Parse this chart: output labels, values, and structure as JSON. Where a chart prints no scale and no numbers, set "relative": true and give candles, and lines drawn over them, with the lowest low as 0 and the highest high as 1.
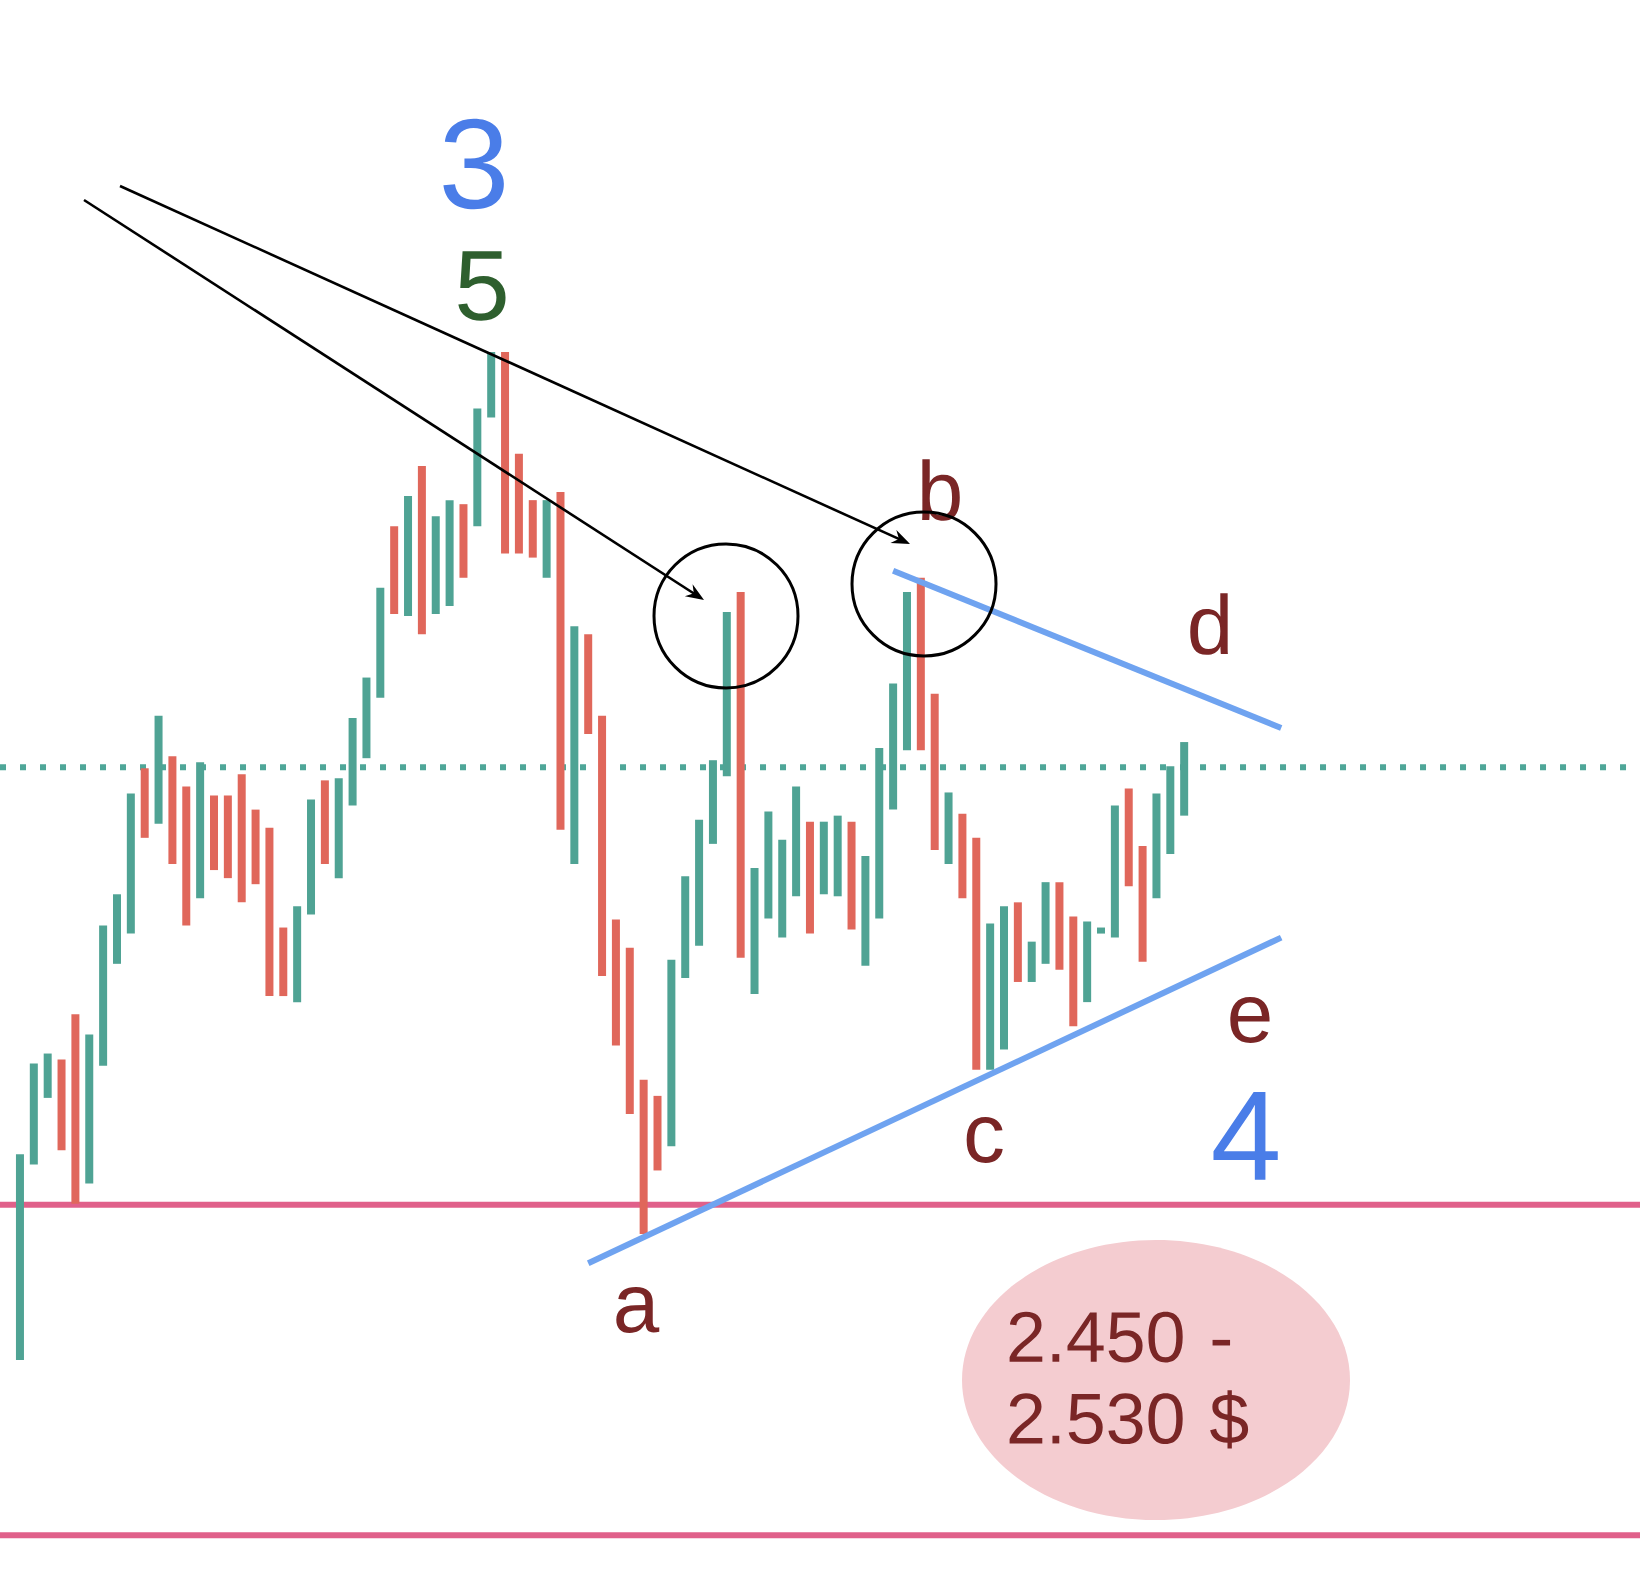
{
  "chart_data": {
    "type": "candlestick",
    "relative": true,
    "categories": [
      null,
      null,
      null,
      null,
      null,
      null,
      null,
      null,
      null,
      null,
      null,
      null,
      null,
      null,
      null,
      null,
      null,
      null,
      null,
      null,
      null,
      null,
      null,
      null,
      null,
      null,
      null,
      null,
      null,
      null,
      null,
      null,
      null,
      null,
      null,
      null,
      null,
      null,
      null,
      null,
      null,
      null,
      null,
      null,
      null,
      null,
      null,
      null,
      null,
      null,
      null,
      null,
      null,
      null,
      null,
      null,
      null,
      null,
      null,
      null,
      null,
      null,
      null,
      null,
      null,
      null,
      null,
      null,
      null,
      null,
      null,
      null,
      null,
      null,
      null,
      null,
      null,
      null,
      null,
      null,
      null,
      null,
      null,
      null,
      null,
      null,
      null,
      null,
      null,
      null,
      null,
      null
    ],
    "ohlc": [
      [
        0,
        0.204,
        0,
        0.204
      ],
      [
        0.194,
        0.294,
        0.194,
        0.294
      ],
      [
        0.26,
        0.304,
        0.26,
        0.304
      ],
      [
        0.298,
        0.298,
        0.208,
        0.208
      ],
      [
        0.343,
        0.343,
        0.155,
        0.155
      ],
      [
        0.175,
        0.323,
        0.175,
        0.323
      ],
      [
        0.292,
        0.431,
        0.292,
        0.431
      ],
      [
        0.393,
        0.462,
        0.393,
        0.462
      ],
      [
        0.423,
        0.562,
        0.423,
        0.562
      ],
      [
        0.587,
        0.587,
        0.518,
        0.518
      ],
      [
        0.532,
        0.639,
        0.532,
        0.639
      ],
      [
        0.599,
        0.599,
        0.492,
        0.492
      ],
      [
        0.569,
        0.569,
        0.431,
        0.431
      ],
      [
        0.458,
        0.593,
        0.458,
        0.593
      ],
      [
        0.56,
        0.56,
        0.486,
        0.486
      ],
      [
        0.56,
        0.56,
        0.478,
        0.478
      ],
      [
        0.581,
        0.581,
        0.454,
        0.454
      ],
      [
        0.546,
        0.546,
        0.472,
        0.472
      ],
      [
        0.528,
        0.528,
        0.361,
        0.361
      ],
      [
        0.429,
        0.429,
        0.361,
        0.361
      ],
      [
        0.355,
        0.45,
        0.355,
        0.45
      ],
      [
        0.442,
        0.556,
        0.442,
        0.556
      ],
      [
        0.575,
        0.575,
        0.492,
        0.492
      ],
      [
        0.478,
        0.577,
        0.478,
        0.577
      ],
      [
        0.55,
        0.637,
        0.55,
        0.637
      ],
      [
        0.597,
        0.677,
        0.597,
        0.677
      ],
      [
        0.657,
        0.766,
        0.657,
        0.766
      ],
      [
        0.827,
        0.827,
        0.74,
        0.74
      ],
      [
        0.738,
        0.857,
        0.738,
        0.857
      ],
      [
        0.887,
        0.887,
        0.72,
        0.72
      ],
      [
        0.74,
        0.837,
        0.74,
        0.837
      ],
      [
        0.748,
        0.853,
        0.748,
        0.853
      ],
      [
        0.849,
        0.849,
        0.776,
        0.776
      ],
      [
        0.827,
        0.944,
        0.827,
        0.944
      ],
      [
        0.935,
        1,
        0.935,
        1
      ],
      [
        1,
        1,
        0.8,
        0.8
      ],
      [
        0.899,
        0.899,
        0.8,
        0.8
      ],
      [
        0.853,
        0.853,
        0.796,
        0.796
      ],
      [
        0.776,
        0.853,
        0.776,
        0.853
      ],
      [
        0.861,
        0.861,
        0.526,
        0.526
      ],
      [
        0.492,
        0.728,
        0.492,
        0.728
      ],
      [
        0.72,
        0.72,
        0.621,
        0.621
      ],
      [
        0.639,
        0.639,
        0.381,
        0.381
      ],
      [
        0.437,
        0.437,
        0.312,
        0.312
      ],
      [
        0.409,
        0.409,
        0.244,
        0.244
      ],
      [
        0.278,
        0.278,
        0.125,
        0.125
      ],
      [
        0.262,
        0.262,
        0.188,
        0.188
      ],
      [
        0.212,
        0.397,
        0.212,
        0.397
      ],
      [
        0.379,
        0.48,
        0.379,
        0.48
      ],
      [
        0.411,
        0.536,
        0.411,
        0.536
      ],
      [
        0.512,
        0.595,
        0.512,
        0.595
      ],
      [
        0.579,
        0.742,
        0.579,
        0.742
      ],
      [
        0.762,
        0.762,
        0.399,
        0.399
      ],
      [
        0.363,
        0.488,
        0.363,
        0.488
      ],
      [
        0.438,
        0.544,
        0.438,
        0.544
      ],
      [
        0.419,
        0.516,
        0.419,
        0.516
      ],
      [
        0.46,
        0.569,
        0.46,
        0.569
      ],
      [
        0.534,
        0.534,
        0.423,
        0.423
      ],
      [
        0.462,
        0.534,
        0.462,
        0.534
      ],
      [
        0.46,
        0.54,
        0.46,
        0.54
      ],
      [
        0.534,
        0.534,
        0.427,
        0.427
      ],
      [
        0.391,
        0.5,
        0.391,
        0.5
      ],
      [
        0.438,
        0.607,
        0.438,
        0.607
      ],
      [
        0.546,
        0.671,
        0.546,
        0.671
      ],
      [
        0.605,
        0.762,
        0.605,
        0.762
      ],
      [
        0.776,
        0.776,
        0.605,
        0.605
      ],
      [
        0.661,
        0.661,
        0.506,
        0.506
      ],
      [
        0.492,
        0.563,
        0.492,
        0.563
      ],
      [
        0.542,
        0.542,
        0.458,
        0.458
      ],
      [
        0.518,
        0.518,
        0.288,
        0.288
      ],
      [
        0.288,
        0.433,
        0.288,
        0.433
      ],
      [
        0.308,
        0.45,
        0.308,
        0.45
      ],
      [
        0.454,
        0.454,
        0.375,
        0.375
      ],
      [
        0.375,
        0.415,
        0.375,
        0.415
      ],
      [
        0.393,
        0.474,
        0.393,
        0.474
      ],
      [
        0.474,
        0.474,
        0.387,
        0.387
      ],
      [
        0.44,
        0.44,
        0.331,
        0.331
      ],
      [
        0.355,
        0.435,
        0.355,
        0.435
      ],
      [
        0.423,
        0.429,
        0.423,
        0.429
      ],
      [
        0.419,
        0.55,
        0.419,
        0.55
      ],
      [
        0.567,
        0.567,
        0.47,
        0.47
      ],
      [
        0.51,
        0.51,
        0.395,
        0.395
      ],
      [
        0.458,
        0.562,
        0.458,
        0.562
      ],
      [
        0.502,
        0.589,
        0.502,
        0.589
      ],
      [
        0.54,
        0.613,
        0.54,
        0.613
      ],
      null,
      null,
      null,
      null,
      null,
      null,
      null
    ],
    "series": [
      {
        "type": "line",
        "color": "#6fa3f0",
        "values": [
          null,
          null,
          null,
          null,
          null,
          null,
          null,
          null,
          null,
          null,
          null,
          null,
          null,
          null,
          null,
          null,
          null,
          null,
          null,
          null,
          null,
          null,
          null,
          null,
          null,
          null,
          null,
          null,
          null,
          null,
          null,
          null,
          null,
          null,
          null,
          null,
          null,
          null,
          null,
          null,
          null,
          null,
          null,
          null,
          null,
          null,
          null,
          null,
          null,
          null,
          null,
          null,
          null,
          null,
          null,
          null,
          null,
          null,
          null,
          null,
          null,
          null,
          null,
          0.783,
          null,
          null,
          null,
          null,
          null,
          null,
          null,
          null,
          null,
          null,
          null,
          null,
          null,
          null,
          null,
          null,
          null,
          null,
          null,
          null,
          null,
          null,
          null,
          null,
          null,
          null,
          null,
          0.627
        ]
      },
      {
        "type": "line",
        "color": "#6fa3f0",
        "values": [
          null,
          null,
          null,
          null,
          null,
          null,
          null,
          null,
          null,
          null,
          null,
          null,
          null,
          null,
          null,
          null,
          null,
          null,
          null,
          null,
          null,
          null,
          null,
          null,
          null,
          null,
          null,
          null,
          null,
          null,
          null,
          null,
          null,
          null,
          null,
          null,
          null,
          null,
          null,
          null,
          null,
          0.096,
          null,
          null,
          null,
          null,
          null,
          null,
          null,
          null,
          null,
          null,
          null,
          null,
          null,
          null,
          null,
          null,
          null,
          null,
          null,
          null,
          null,
          null,
          null,
          null,
          null,
          null,
          null,
          null,
          null,
          null,
          null,
          null,
          null,
          null,
          null,
          null,
          null,
          null,
          null,
          null,
          null,
          null,
          null,
          null,
          null,
          null,
          null,
          null,
          null,
          0.419
        ]
      }
    ],
    "ref_lines": [
      {
        "axis": "y",
        "value": 0.588,
        "color": "#4ea698",
        "line_style": "dotted"
      },
      {
        "axis": "y",
        "value": 0.154,
        "color": "#e0608a",
        "line_style": "solid"
      },
      {
        "axis": "y",
        "value": -0.174,
        "color": "#e0608a",
        "line_style": "solid"
      }
    ],
    "annotations": [
      "3",
      "5",
      "b",
      "d",
      "a",
      "c",
      "e",
      "4",
      "2.450 - 2.530 $"
    ]
  }
}
